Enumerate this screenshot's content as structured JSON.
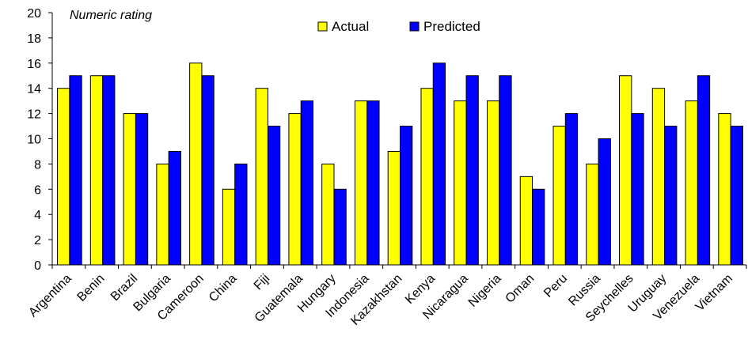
{
  "chart_data": {
    "type": "bar",
    "title": "",
    "xlabel": "",
    "ylabel": "Numeric rating",
    "ylim": [
      0,
      20
    ],
    "yticks": [
      0,
      2,
      4,
      6,
      8,
      10,
      12,
      14,
      16,
      18,
      20
    ],
    "grid": false,
    "legend_position": "top-center",
    "categories": [
      "Argentina",
      "Benin",
      "Brazil",
      "Bulgaria",
      "Cameroon",
      "China",
      "Fiji",
      "Guatemala",
      "Hungary",
      "Indonesia",
      "Kazakhstan",
      "Kenya",
      "Nicaragua",
      "Nigeria",
      "Oman",
      "Peru",
      "Russia",
      "Seychelles",
      "Uruguay",
      "Venezuela",
      "Vietnam"
    ],
    "series": [
      {
        "name": "Actual",
        "color": "#ffff00",
        "values": [
          14,
          15,
          12,
          8,
          16,
          6,
          14,
          12,
          8,
          13,
          9,
          14,
          13,
          13,
          7,
          11,
          8,
          15,
          14,
          13,
          12
        ]
      },
      {
        "name": "Predicted",
        "color": "#0000ff",
        "values": [
          15,
          15,
          12,
          9,
          15,
          8,
          11,
          13,
          6,
          13,
          11,
          16,
          15,
          15,
          6,
          12,
          10,
          12,
          11,
          15,
          11
        ]
      }
    ]
  }
}
